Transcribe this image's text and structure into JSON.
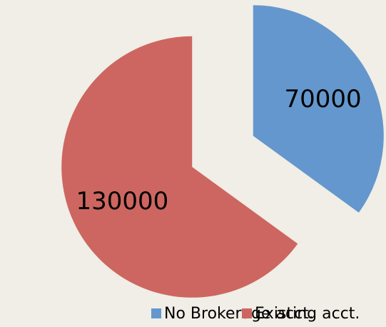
{
  "chart_data": {
    "type": "pie",
    "categories": [
      "No Brokerage acct.",
      "Existing acct."
    ],
    "values": [
      70000,
      130000
    ],
    "colors": [
      "#6497cd",
      "#cd6660"
    ],
    "legend": "bottom"
  }
}
